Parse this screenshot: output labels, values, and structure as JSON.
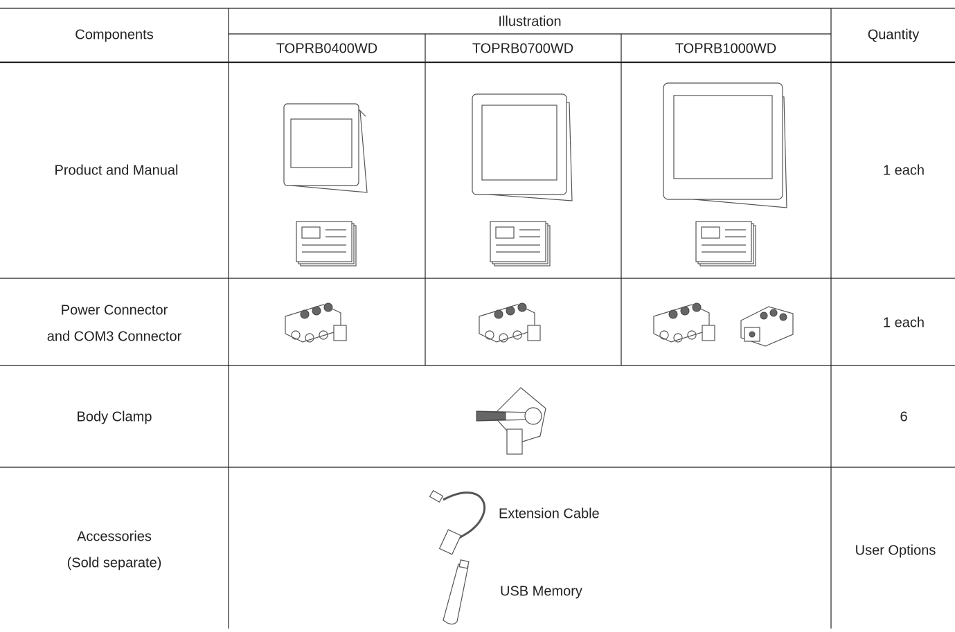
{
  "table": {
    "header": {
      "components": "Components",
      "illustration": "Illustration",
      "models": [
        "TOPRB0400WD",
        "TOPRB0700WD",
        "TOPRB1000WD"
      ],
      "quantity": "Quantity"
    },
    "rows": [
      {
        "component": [
          "Product and Manual"
        ],
        "quantity": "1 each"
      },
      {
        "component": [
          "Power Connector",
          "and COM3 Connector"
        ],
        "quantity": "1 each"
      },
      {
        "component": [
          "Body Clamp"
        ],
        "quantity": "6"
      },
      {
        "component": [
          "Accessories",
          "(Sold separate)"
        ],
        "quantity": "User Options",
        "items": [
          "Extension Cable",
          "USB Memory"
        ]
      }
    ]
  }
}
